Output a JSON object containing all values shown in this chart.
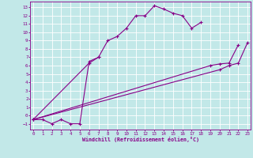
{
  "xlabel": "Windchill (Refroidissement éolien,°C)",
  "bg_color": "#c2e8e8",
  "line_color": "#880088",
  "grid_color": "#aad8d8",
  "xlim": [
    -0.3,
    23.3
  ],
  "ylim": [
    -1.7,
    13.7
  ],
  "xticks": [
    0,
    1,
    2,
    3,
    4,
    5,
    6,
    7,
    8,
    9,
    10,
    11,
    12,
    13,
    14,
    15,
    16,
    17,
    18,
    19,
    20,
    21,
    22,
    23
  ],
  "yticks": [
    -1,
    0,
    1,
    2,
    3,
    4,
    5,
    6,
    7,
    8,
    9,
    10,
    11,
    12,
    13
  ],
  "main_x": [
    0,
    1,
    2,
    3,
    4,
    5,
    6,
    7,
    8,
    9,
    10,
    11,
    12,
    13,
    14,
    15,
    16,
    17,
    18
  ],
  "main_y": [
    -0.5,
    -0.5,
    -1.0,
    -0.5,
    -1.0,
    -1.0,
    6.5,
    7.0,
    9.0,
    9.5,
    10.5,
    12.0,
    12.0,
    13.2,
    12.8,
    12.3,
    12.0,
    10.5,
    11.2
  ],
  "line2_x": [
    0,
    6,
    7
  ],
  "line2_y": [
    -0.5,
    6.3,
    7.0
  ],
  "line3_x": [
    0,
    19,
    20,
    21,
    22
  ],
  "line3_y": [
    -0.5,
    6.0,
    6.2,
    6.3,
    8.5
  ],
  "line4_x": [
    0,
    20,
    21,
    22,
    23
  ],
  "line4_y": [
    -0.5,
    5.5,
    6.0,
    6.3,
    8.8
  ]
}
